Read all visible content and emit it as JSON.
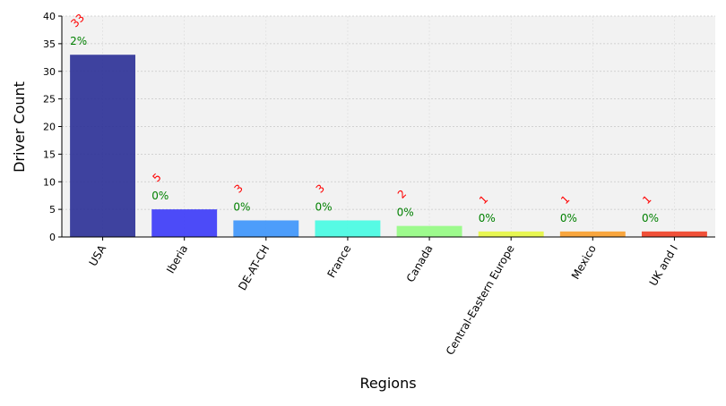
{
  "chart_data": {
    "type": "bar",
    "categories": [
      "USA",
      "Iberia",
      "DE-AT-CH",
      "France",
      "Canada",
      "Central-Eastern Europe",
      "Mexico",
      "UK and I"
    ],
    "values": [
      33,
      5,
      3,
      3,
      2,
      1,
      1,
      1
    ],
    "percent_labels": [
      "2%",
      "0%",
      "0%",
      "0%",
      "0%",
      "0%",
      "0%",
      "0%"
    ],
    "bar_colors": [
      "#2a2f96",
      "#3a38f8",
      "#3b94fb",
      "#45fbe2",
      "#93fb82",
      "#e6f640",
      "#f99d2a",
      "#ef3e24"
    ],
    "value_label_color": "#ff0000",
    "percent_label_color": "#008000",
    "xlabel": "Regions",
    "ylabel": "Driver Count",
    "ylim": [
      0,
      40
    ],
    "yticks": [
      0,
      5,
      10,
      15,
      20,
      25,
      30,
      35,
      40
    ],
    "grid": true,
    "plot_background": "#f2f2f2"
  }
}
